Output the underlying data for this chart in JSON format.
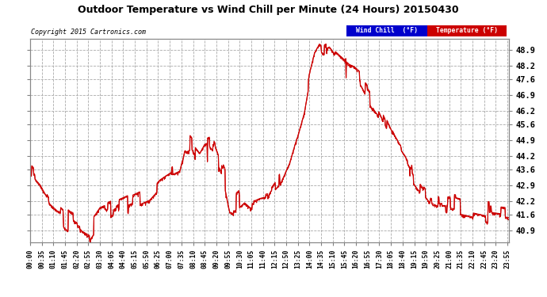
{
  "title": "Outdoor Temperature vs Wind Chill per Minute (24 Hours) 20150430",
  "copyright": "Copyright 2015 Cartronics.com",
  "bg_color": "#ffffff",
  "plot_bg_color": "#ffffff",
  "grid_color": "#aaaaaa",
  "line_color": "#cc0000",
  "yticks": [
    40.9,
    41.6,
    42.2,
    42.9,
    43.6,
    44.2,
    44.9,
    45.6,
    46.2,
    46.9,
    47.6,
    48.2,
    48.9
  ],
  "ylim": [
    40.4,
    49.4
  ],
  "legend_wind_chill_bg": "#0000cc",
  "legend_temperature_bg": "#cc0000",
  "xtick_labels": [
    "00:00",
    "00:35",
    "01:10",
    "01:45",
    "02:20",
    "02:55",
    "03:30",
    "04:05",
    "04:40",
    "05:15",
    "05:50",
    "06:25",
    "07:00",
    "07:35",
    "08:10",
    "08:45",
    "09:20",
    "09:55",
    "10:30",
    "11:05",
    "11:40",
    "12:15",
    "12:50",
    "13:25",
    "14:00",
    "14:35",
    "15:10",
    "15:45",
    "16:20",
    "16:55",
    "17:30",
    "18:05",
    "18:40",
    "19:15",
    "19:50",
    "20:25",
    "21:00",
    "21:35",
    "22:10",
    "22:45",
    "23:20",
    "23:55"
  ],
  "curve_keypoints": [
    [
      0,
      43.5
    ],
    [
      30,
      43.0
    ],
    [
      60,
      42.2
    ],
    [
      90,
      41.8
    ],
    [
      120,
      41.4
    ],
    [
      150,
      41.2
    ],
    [
      180,
      40.95
    ],
    [
      210,
      41.6
    ],
    [
      240,
      41.8
    ],
    [
      270,
      42.1
    ],
    [
      300,
      42.3
    ],
    [
      330,
      42.5
    ],
    [
      360,
      42.7
    ],
    [
      390,
      43.2
    ],
    [
      420,
      43.5
    ],
    [
      450,
      43.7
    ],
    [
      465,
      44.7
    ],
    [
      480,
      44.8
    ],
    [
      495,
      44.5
    ],
    [
      510,
      44.2
    ],
    [
      525,
      44.6
    ],
    [
      540,
      44.7
    ],
    [
      555,
      44.4
    ],
    [
      570,
      43.8
    ],
    [
      585,
      43.3
    ],
    [
      600,
      42.2
    ],
    [
      615,
      42.1
    ],
    [
      630,
      42.3
    ],
    [
      645,
      42.5
    ],
    [
      660,
      42.3
    ],
    [
      675,
      42.2
    ],
    [
      690,
      42.3
    ],
    [
      720,
      42.4
    ],
    [
      750,
      43.0
    ],
    [
      780,
      44.0
    ],
    [
      810,
      45.5
    ],
    [
      825,
      46.3
    ],
    [
      840,
      47.6
    ],
    [
      855,
      48.5
    ],
    [
      870,
      48.9
    ],
    [
      885,
      48.7
    ],
    [
      900,
      48.8
    ],
    [
      915,
      48.5
    ],
    [
      930,
      48.3
    ],
    [
      945,
      48.1
    ],
    [
      960,
      47.9
    ],
    [
      975,
      47.8
    ],
    [
      990,
      47.6
    ],
    [
      1005,
      47.2
    ],
    [
      1020,
      46.9
    ],
    [
      1035,
      46.5
    ],
    [
      1050,
      46.2
    ],
    [
      1065,
      45.7
    ],
    [
      1080,
      45.2
    ],
    [
      1095,
      44.7
    ],
    [
      1110,
      44.3
    ],
    [
      1125,
      44.0
    ],
    [
      1140,
      43.6
    ],
    [
      1155,
      43.2
    ],
    [
      1170,
      42.9
    ],
    [
      1185,
      42.6
    ],
    [
      1200,
      42.3
    ],
    [
      1215,
      42.2
    ],
    [
      1230,
      42.1
    ],
    [
      1260,
      42.1
    ],
    [
      1290,
      42.0
    ],
    [
      1320,
      41.9
    ],
    [
      1350,
      41.8
    ],
    [
      1380,
      41.7
    ],
    [
      1410,
      41.65
    ],
    [
      1439,
      41.6
    ]
  ]
}
